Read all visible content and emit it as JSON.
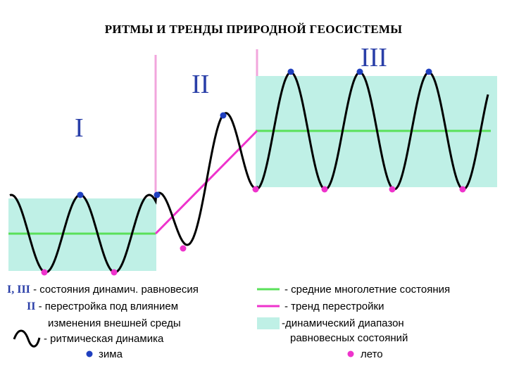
{
  "title": "РИТМЫ И ТРЕНДЫ ПРИРОДНОЙ ГЕОСИСТЕМЫ",
  "stages": [
    "I",
    "II",
    "III"
  ],
  "colors": {
    "band": "#bff0e6",
    "wave": "#000000",
    "mean": "#5ae05a",
    "trend": "#ee33cc",
    "boundary": "#f2a6dc",
    "winter": "#1f3fbf",
    "summer": "#ee33cc",
    "roman": "#2a3fa8"
  },
  "legend": {
    "equilibrium_symbol": "I, III",
    "equilibrium_text": "- состояния динамич. равновесия",
    "restructuring_symbol": "II",
    "restructuring_text_1": "- перестройка под влиянием",
    "restructuring_text_2": "изменения внешней среды",
    "rhythmic_text": "- ритмическая динамика",
    "winter_text": "зима",
    "mean_text": "- средние многолетние состояния",
    "trend_text": "- тренд перестройки",
    "range_text_1": "-динамический диапазон",
    "range_text_2": "равновесных состояний",
    "summer_text": "лето",
    "wave_icon": "sine-wave-icon",
    "winter_icon": "blue-dot-icon",
    "summer_icon": "magenta-dot-icon"
  }
}
